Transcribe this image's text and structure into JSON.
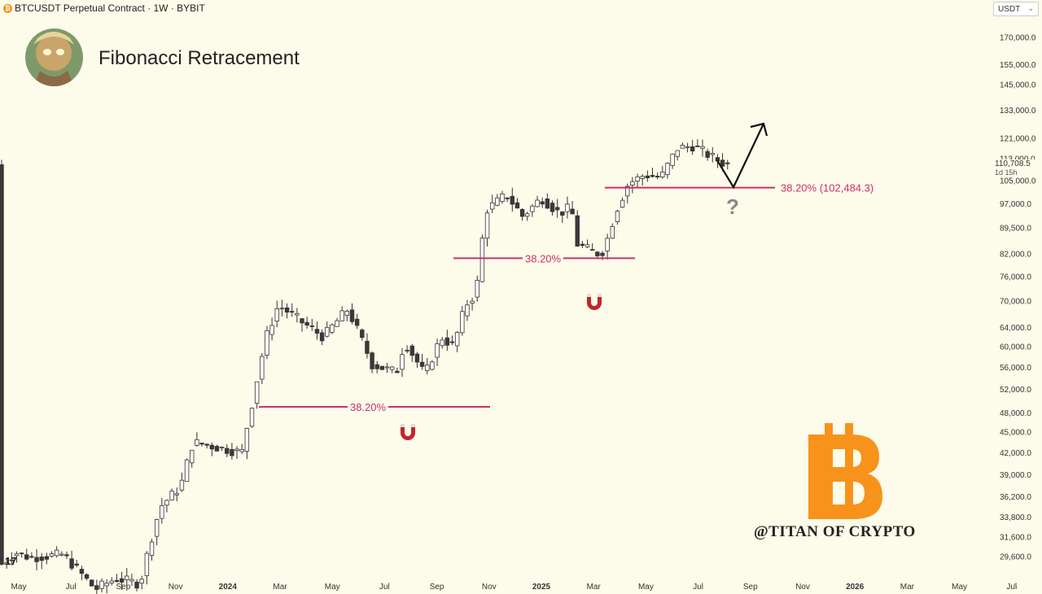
{
  "header": {
    "symbol_line": "BTCUSDT Perpetual Contract · 1W · BYBIT",
    "currency_select": "USDT"
  },
  "title": "Fibonacci Retracement",
  "watermark": "@TITAN OF CRYPTO",
  "current_price": {
    "value": "110,708.5",
    "countdown": "1d 15h"
  },
  "question_mark": "?",
  "tv_logo": "17",
  "colors": {
    "background": "#fdfbe9",
    "fib_line": "#c9326a",
    "up_candle": "#ffffff",
    "down_candle": "#3a3a3a",
    "magnet": "#c0272d",
    "bitcoin": "#f7931a"
  },
  "icons": [
    "bitcoin-icon",
    "avatar-image",
    "magnet-icon",
    "arrow-icon",
    "tradingview-logo-icon"
  ],
  "chart_data": {
    "type": "candlestick",
    "timeframe": "1W",
    "y_scale": "log",
    "y_ticks": [
      "170,000.0",
      "155,000.0",
      "145,000.0",
      "133,000.0",
      "121,000.0",
      "113,000.0",
      "105,000.0",
      "97,000.0",
      "89,500.0",
      "82,000.0",
      "76,000.0",
      "70,000.0",
      "64,000.0",
      "60,000.0",
      "56,000.0",
      "52,000.0",
      "48,000.0",
      "45,000.0",
      "42,000.0",
      "39,000.0",
      "36,200.0",
      "33,800.0",
      "31,600.0",
      "29,600.0"
    ],
    "x_ticks": [
      "May",
      "Jul",
      "Sep",
      "Nov",
      "2024",
      "Mar",
      "May",
      "Jul",
      "Sep",
      "Nov",
      "2025",
      "Mar",
      "May",
      "Jul",
      "Sep",
      "Nov",
      "2026",
      "Mar",
      "May",
      "Jul"
    ],
    "fib_levels": [
      {
        "label": "38.20%",
        "price": 49000
      },
      {
        "label": "38.20%",
        "price": 80800
      },
      {
        "label": "38.20% (102,484.3)",
        "price": 102484.3
      }
    ],
    "projection": {
      "from": "Sep 2025",
      "dip_to": 102484.3,
      "target_above": 125000
    }
  }
}
